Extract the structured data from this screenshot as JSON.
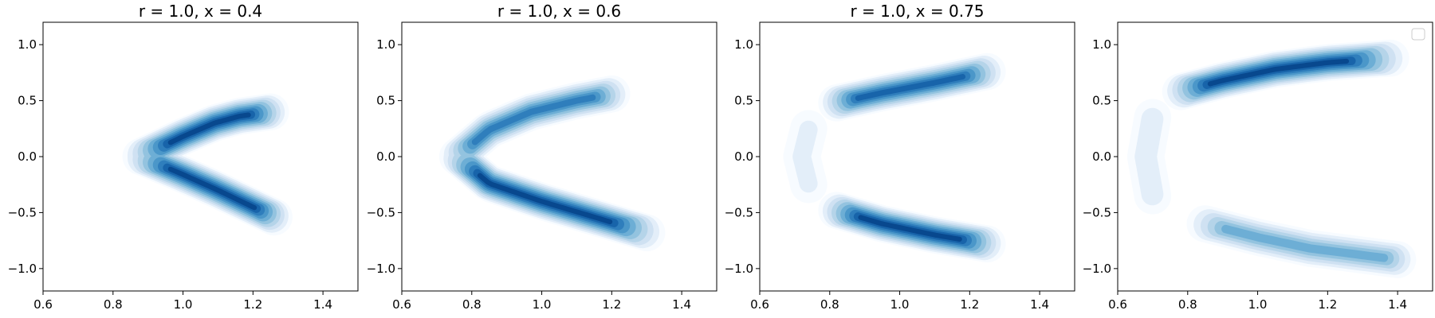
{
  "chart_data": [
    {
      "type": "density",
      "title": "r = 1.0, x = 0.4",
      "xlabel": "",
      "ylabel": "",
      "xlim": [
        0.6,
        1.5
      ],
      "ylim": [
        -1.2,
        1.2
      ],
      "xticks": [
        "0.6",
        "0.8",
        "1.0",
        "1.2",
        "1.4"
      ],
      "yticks": [
        "−1.0",
        "−0.5",
        "0.0",
        "0.5",
        "1.0"
      ],
      "arms": [
        {
          "x": [
            0.88,
            1.0,
            1.09,
            1.16,
            1.25
          ],
          "y": [
            0.0,
            0.18,
            0.3,
            0.36,
            0.4
          ],
          "peak": 1.0
        },
        {
          "x": [
            0.88,
            1.0,
            1.1,
            1.18,
            1.26
          ],
          "y": [
            0.0,
            -0.16,
            -0.3,
            -0.42,
            -0.54
          ],
          "peak": 1.0
        }
      ],
      "legend": false
    },
    {
      "type": "density",
      "title": "r = 1.0, x = 0.6",
      "xlabel": "",
      "ylabel": "",
      "xlim": [
        0.6,
        1.5
      ],
      "ylim": [
        -1.2,
        1.2
      ],
      "xticks": [
        "0.6",
        "0.8",
        "1.0",
        "1.2",
        "1.4"
      ],
      "yticks": [
        "−1.0",
        "−0.5",
        "0.0",
        "0.5",
        "1.0"
      ],
      "arms": [
        {
          "x": [
            0.76,
            0.85,
            0.97,
            1.1,
            1.2
          ],
          "y": [
            0.0,
            0.24,
            0.4,
            0.5,
            0.56
          ],
          "peak": 0.8
        },
        {
          "x": [
            0.76,
            0.85,
            1.0,
            1.15,
            1.3
          ],
          "y": [
            0.0,
            -0.24,
            -0.4,
            -0.54,
            -0.68
          ],
          "peak": 1.0
        }
      ],
      "legend": false
    },
    {
      "type": "density",
      "title": "r = 1.0, x = 0.75",
      "xlabel": "",
      "ylabel": "",
      "xlim": [
        0.6,
        1.5
      ],
      "ylim": [
        -1.2,
        1.2
      ],
      "xticks": [
        "0.6",
        "0.8",
        "1.0",
        "1.2",
        "1.4"
      ],
      "yticks": [
        "−1.0",
        "−0.5",
        "0.0",
        "0.5",
        "1.0"
      ],
      "arms": [
        {
          "x": [
            0.82,
            0.95,
            1.1,
            1.25
          ],
          "y": [
            0.48,
            0.57,
            0.66,
            0.76
          ],
          "peak": 0.9
        },
        {
          "x": [
            0.82,
            0.95,
            1.1,
            1.25
          ],
          "y": [
            -0.48,
            -0.6,
            -0.7,
            -0.78
          ],
          "peak": 1.0
        },
        {
          "x": [
            0.74,
            0.72,
            0.74
          ],
          "y": [
            0.25,
            0.0,
            -0.25
          ],
          "peak": 0.15
        }
      ],
      "legend": false
    },
    {
      "type": "density",
      "title": "",
      "xlabel": "",
      "ylabel": "",
      "xlim": [
        0.6,
        1.5
      ],
      "ylim": [
        -1.2,
        1.2
      ],
      "xticks": [
        "0.6",
        "0.8",
        "1.0",
        "1.2",
        "1.4"
      ],
      "yticks": [
        "−1.0",
        "−0.5",
        "0.0",
        "0.5",
        "1.0"
      ],
      "arms": [
        {
          "x": [
            0.78,
            0.9,
            1.05,
            1.2,
            1.38
          ],
          "y": [
            0.58,
            0.68,
            0.78,
            0.84,
            0.88
          ],
          "peak": 1.0
        },
        {
          "x": [
            0.85,
            1.0,
            1.15,
            1.3,
            1.4
          ],
          "y": [
            -0.6,
            -0.72,
            -0.82,
            -0.88,
            -0.92
          ],
          "peak": 0.6
        },
        {
          "x": [
            0.7,
            0.68,
            0.7
          ],
          "y": [
            0.35,
            0.0,
            -0.35
          ],
          "peak": 0.2
        }
      ],
      "legend": true,
      "legend_position": "top-right"
    }
  ],
  "colors": [
    "#f7fbff",
    "#e3eef9",
    "#cfe1f2",
    "#b5d4e9",
    "#93c3df",
    "#6daed5",
    "#4b97c9",
    "#2f7ebc",
    "#1864aa",
    "#08488e"
  ]
}
